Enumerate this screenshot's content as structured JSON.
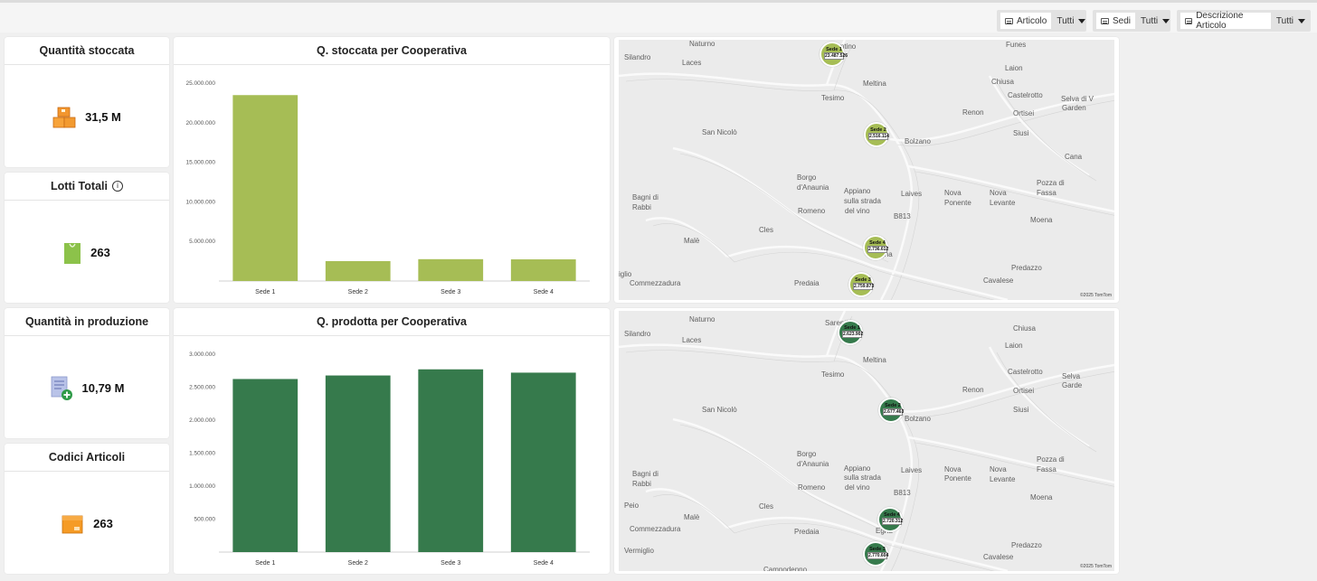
{
  "filters": [
    {
      "label": "Articolo",
      "value": "Tutti"
    },
    {
      "label": "Sedi",
      "value": "Tutti"
    },
    {
      "label": "Descrizione Articolo",
      "value": "Tutti"
    }
  ],
  "kpis": [
    {
      "title": "Quantità stoccata",
      "value": "31,5 M",
      "icon": "boxes-icon"
    },
    {
      "title": "Lotti Totali",
      "value": "263",
      "icon": "bag-icon",
      "info_icon": "i"
    },
    {
      "title": "Quantità in produzione",
      "value": "10,79 M",
      "icon": "document-add-icon"
    },
    {
      "title": "Codici Articoli",
      "value": "263",
      "icon": "package-icon"
    }
  ],
  "colors": {
    "stock": "#a6bd55",
    "produced": "#367a4c"
  },
  "chart_data": [
    {
      "type": "bar",
      "title": "Q. stoccata per Cooperativa",
      "categories": [
        "Sede 1",
        "Sede 2",
        "Sede 3",
        "Sede 4"
      ],
      "values": [
        23487526,
        2516114,
        2759873,
        2736612
      ],
      "ylim": [
        0,
        25000000
      ],
      "yticks": [
        5000000,
        10000000,
        15000000,
        20000000,
        25000000
      ],
      "ytick_labels": [
        "5.000.000",
        "10.000.000",
        "15.000.000",
        "20.000.000",
        "25.000.000"
      ],
      "xlabel": "",
      "ylabel": "",
      "color": "#a6bd55"
    },
    {
      "type": "bar",
      "title": "Q. prodotta per Cooperativa",
      "categories": [
        "Sede 1",
        "Sede 2",
        "Sede 3",
        "Sede 4"
      ],
      "values": [
        2623902,
        2677463,
        2770604,
        2720312
      ],
      "ylim": [
        0,
        3000000
      ],
      "yticks": [
        500000,
        1000000,
        1500000,
        2000000,
        2500000,
        3000000
      ],
      "ytick_labels": [
        "500.000",
        "1.000.000",
        "1.500.000",
        "2.000.000",
        "2.500.000",
        "3.000.000"
      ],
      "xlabel": "",
      "ylabel": "",
      "color": "#367a4c"
    }
  ],
  "maps": [
    {
      "places": [
        "Naturno",
        "Sarentino",
        "Funes",
        "Silandro",
        "Laces",
        "Laion",
        "Meltina",
        "Tesimo",
        "Castelrotto",
        "Ortisei",
        "Selva di V",
        "Garden",
        "Chiusa",
        "Siusi",
        "Renon",
        "San Nicolò",
        "Bolzano",
        "Cana",
        "Appiano",
        "sulla strada",
        "del vino",
        "Borgo",
        "d'Anaunia",
        "Bagni di",
        "Rabbi",
        "Laives",
        "Nova",
        "Ponente",
        "Nova",
        "Levante",
        "Pozza di",
        "Fassa",
        "Romeno",
        "B813",
        "Moena",
        "Malè",
        "Cles",
        "Commezzadura",
        "Predaia",
        "Egna",
        "Predazzo",
        "Cavalese",
        "iglio"
      ],
      "pins": [
        {
          "name": "Sede 1",
          "value": "23.487.526"
        },
        {
          "name": "Sede 2",
          "value": "2.516.114"
        },
        {
          "name": "Sede 4",
          "value": "2.736.612"
        },
        {
          "name": "Sede 3",
          "value": "2.759.873"
        }
      ],
      "copyright": "©2025 TomTom"
    },
    {
      "places": [
        "Naturno",
        "Sarentino",
        "Chiusa",
        "Silandro",
        "Laces",
        "Laion",
        "Meltina",
        "Tesimo",
        "Castelrotto",
        "Ortisei",
        "Selva",
        "Garde",
        "Siusi",
        "Renon",
        "San Nicolò",
        "Bolzano",
        "Appiano",
        "sulla strada",
        "del vino",
        "Borgo",
        "d'Anaunia",
        "Bagni di",
        "Rabbi",
        "Laives",
        "Nova",
        "Ponente",
        "Nova",
        "Levante",
        "Pozza di",
        "Fassa",
        "Romeno",
        "B813",
        "Moena",
        "Peio",
        "Malè",
        "Cles",
        "Commezzadura",
        "Predaia",
        "Egna",
        "Predazzo",
        "Vermiglio",
        "Cavalese",
        "Campodenno"
      ],
      "pins": [
        {
          "name": "Sede 1",
          "value": "2.623.902"
        },
        {
          "name": "Sede 2",
          "value": "2.677.463"
        },
        {
          "name": "Sede 4",
          "value": "2.720.312"
        },
        {
          "name": "Sede 3",
          "value": "2.770.604"
        }
      ],
      "copyright": "©2025 TomTom"
    }
  ]
}
